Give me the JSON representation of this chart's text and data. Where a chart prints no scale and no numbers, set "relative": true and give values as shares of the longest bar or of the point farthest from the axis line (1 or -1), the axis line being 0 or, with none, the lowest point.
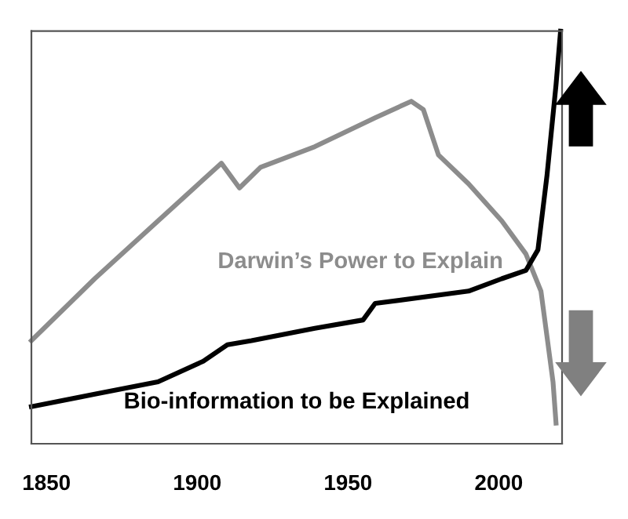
{
  "chart_data": {
    "type": "line",
    "relative": true,
    "xlim": [
      1845,
      2021
    ],
    "xticks": [
      1850,
      1900,
      1950,
      2000
    ],
    "grid": false,
    "legend": false,
    "marker": "none",
    "line_style": "solid",
    "series": [
      {
        "name": "Darwin’s Power to Explain",
        "color": "#8c8c8c",
        "x": [
          1845,
          1866,
          1887,
          1908,
          1914,
          1921,
          1939,
          1959,
          1971,
          1975,
          1980,
          1990,
          2001,
          2009,
          2014,
          2016,
          2018,
          2019
        ],
        "values": [
          0.25,
          0.4,
          0.54,
          0.68,
          0.62,
          0.67,
          0.72,
          0.79,
          0.83,
          0.81,
          0.7,
          0.63,
          0.54,
          0.46,
          0.37,
          0.26,
          0.15,
          0.05
        ]
      },
      {
        "name": "Bio-information to be Explained",
        "color": "#000000",
        "x": [
          1845,
          1866,
          1887,
          1902,
          1910,
          1918,
          1939,
          1955,
          1959,
          1990,
          2001,
          2009,
          2013,
          2016,
          2019,
          2020.5
        ],
        "values": [
          0.09,
          0.12,
          0.15,
          0.2,
          0.24,
          0.25,
          0.28,
          0.3,
          0.34,
          0.37,
          0.4,
          0.42,
          0.47,
          0.65,
          0.87,
          1.0
        ]
      }
    ]
  }
}
